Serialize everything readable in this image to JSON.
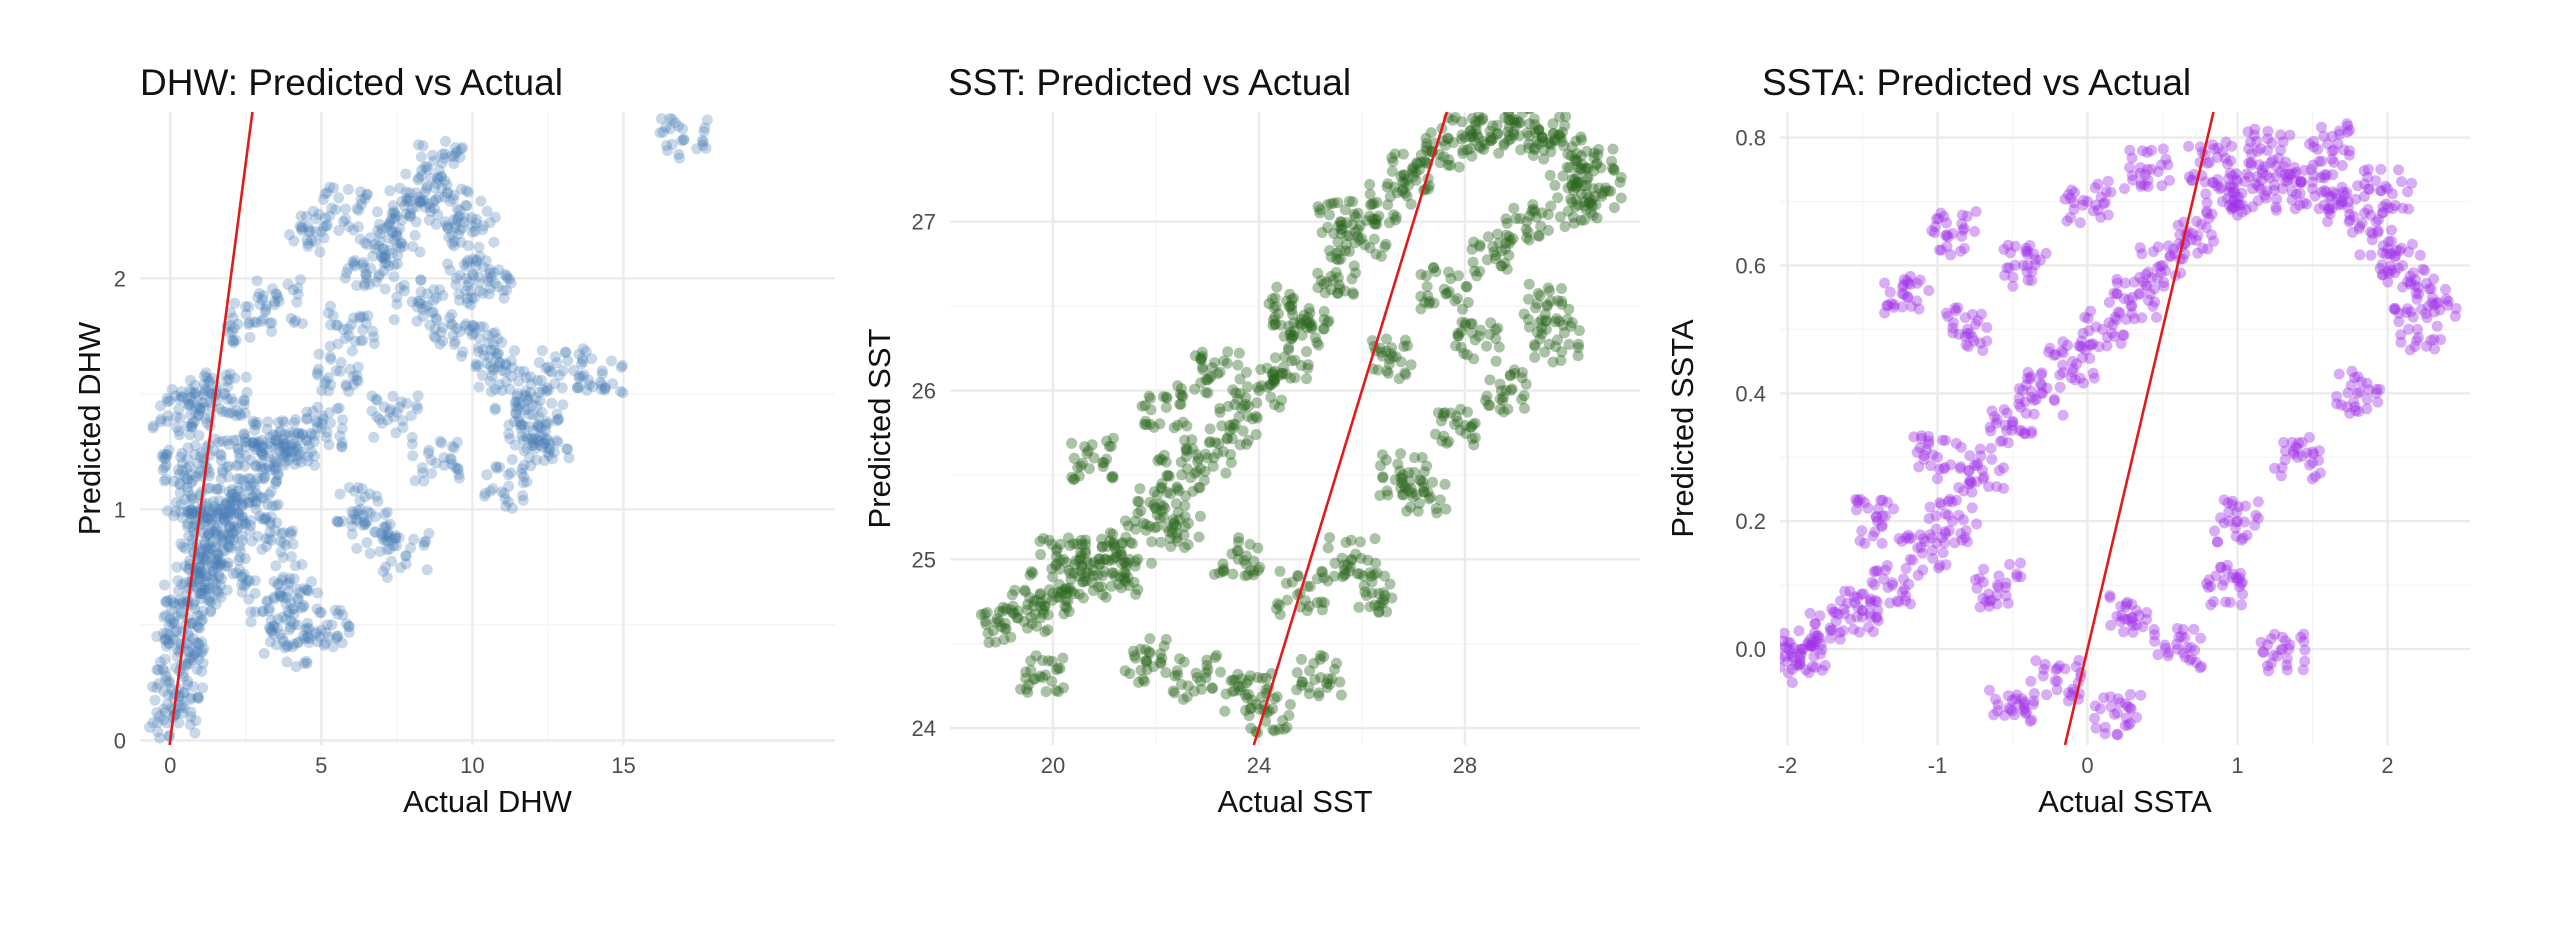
{
  "chart_data": [
    {
      "type": "scatter",
      "title": "DHW: Predicted vs Actual",
      "xlabel": "Actual DHW",
      "ylabel": "Predicted DHW",
      "xlim": [
        -1,
        22
      ],
      "ylim": [
        -0.02,
        2.72
      ],
      "xticks": [
        0,
        5,
        10,
        15
      ],
      "yticks": [
        0,
        1,
        2
      ],
      "grid": true,
      "point_color": "#4a7fb5",
      "point_opacity": 0.3,
      "reference_line": {
        "slope": 1,
        "intercept": 0,
        "color": "#e31a1c"
      },
      "series": [
        {
          "name": "",
          "x": [
            0.1,
            0.3,
            0.5,
            0.8,
            1.0,
            1.2,
            1.5,
            2.0,
            2.5,
            3.0,
            3.5,
            4.0,
            4.5,
            5.0,
            0.2,
            0.6,
            1.8,
            2.2,
            2.8,
            3.2,
            3.8,
            4.2,
            5.5,
            6.0,
            6.5,
            7.0,
            7.5,
            8.0,
            8.5,
            9.0,
            9.5,
            10.0,
            10.5,
            11.0,
            11.5,
            12.0,
            12.5,
            13.0,
            14.3,
            17.0,
            0.4,
            0.7,
            1.1,
            1.6,
            2.4,
            3.3,
            4.1,
            5.2,
            6.3,
            7.4,
            8.2,
            9.3,
            10.2,
            11.2,
            12.2,
            6.8,
            7.8,
            8.8,
            9.8,
            3.6,
            4.6,
            5.8,
            2.6,
            1.4,
            0.9,
            0.15,
            0.35,
            0.55,
            1.3,
            1.7
          ],
          "y": [
            0.1,
            0.3,
            0.5,
            0.6,
            0.7,
            0.8,
            0.9,
            1.0,
            1.1,
            1.2,
            1.3,
            1.25,
            1.3,
            1.35,
            1.4,
            1.45,
            1.5,
            1.3,
            1.1,
            0.6,
            0.4,
            0.5,
            1.6,
            1.8,
            2.0,
            2.1,
            2.2,
            2.3,
            2.4,
            2.5,
            2.3,
            2.2,
            2.0,
            1.6,
            1.5,
            1.3,
            1.3,
            1.6,
            1.6,
            2.6,
            1.2,
            1.0,
            0.9,
            0.8,
            0.95,
            0.9,
            0.7,
            0.5,
            1.0,
            1.4,
            1.9,
            1.8,
            1.7,
            1.1,
            1.4,
            0.9,
            0.8,
            1.2,
            2.0,
            1.9,
            2.2,
            2.3,
            1.8,
            1.5,
            1.2,
            0.2,
            0.4,
            0.6,
            1.0,
            0.7
          ]
        }
      ]
    },
    {
      "type": "scatter",
      "title": "SST: Predicted vs Actual",
      "xlabel": "Actual SST",
      "ylabel": "Predicted SST",
      "xlim": [
        18,
        31.4
      ],
      "ylim": [
        23.9,
        27.65
      ],
      "xticks": [
        20,
        24,
        28
      ],
      "yticks": [
        24,
        25,
        26,
        27
      ],
      "grid": true,
      "point_color": "#2a661d",
      "point_opacity": 0.4,
      "reference_line": {
        "slope": 1,
        "intercept": 0,
        "color": "#e31a1c"
      },
      "series": [
        {
          "name": "",
          "x": [
            19.0,
            19.5,
            20.0,
            20.5,
            21.0,
            21.5,
            22.0,
            22.5,
            23.0,
            23.5,
            24.0,
            24.5,
            25.0,
            25.5,
            26.0,
            26.5,
            27.0,
            27.5,
            28.0,
            28.5,
            29.0,
            29.5,
            30.0,
            30.5,
            20.2,
            21.2,
            22.4,
            23.6,
            24.8,
            25.8,
            26.8,
            27.8,
            28.8,
            29.8,
            22.8,
            23.8,
            24.2,
            25.2,
            26.2,
            27.2,
            28.2,
            29.2,
            30.2,
            21.8,
            22.2,
            24.6,
            26.6,
            28.6,
            30.6,
            19.8,
            20.8,
            23.2,
            25.6,
            27.6,
            29.6
          ],
          "y": [
            24.6,
            24.7,
            24.8,
            24.9,
            25.0,
            25.1,
            25.3,
            25.5,
            25.6,
            25.8,
            26.0,
            26.2,
            26.4,
            26.7,
            26.9,
            27.1,
            27.3,
            27.4,
            27.5,
            27.5,
            27.6,
            27.5,
            27.4,
            27.3,
            25.0,
            24.9,
            25.2,
            25.0,
            24.8,
            25.0,
            25.5,
            25.8,
            26.0,
            26.3,
            24.3,
            24.2,
            24.1,
            24.3,
            24.8,
            25.4,
            26.3,
            27.0,
            27.1,
            24.4,
            25.9,
            26.5,
            26.2,
            26.8,
            27.2,
            24.3,
            25.6,
            26.1,
            27.0,
            26.6,
            26.5
          ]
        }
      ]
    },
    {
      "type": "scatter",
      "title": "SSTA: Predicted vs Actual",
      "xlabel": "Actual SSTA",
      "ylabel": "Predicted SSTA",
      "xlim": [
        -2.05,
        2.55
      ],
      "ylim": [
        -0.15,
        0.84
      ],
      "xticks": [
        -2,
        -1,
        0,
        1,
        2
      ],
      "yticks": [
        0.0,
        0.2,
        0.4,
        0.6,
        0.8
      ],
      "grid": true,
      "point_color": "#a033e8",
      "point_opacity": 0.4,
      "reference_line": {
        "slope": 1,
        "intercept": 0,
        "color": "#e31a1c"
      },
      "series": [
        {
          "name": "",
          "x": [
            -2.0,
            -1.9,
            -1.7,
            -1.5,
            -1.3,
            -1.1,
            -0.9,
            -0.7,
            -0.5,
            -0.3,
            -0.1,
            0.1,
            0.3,
            0.5,
            0.7,
            0.9,
            1.1,
            1.3,
            1.5,
            1.7,
            1.9,
            2.1,
            2.3,
            -1.4,
            -1.0,
            -0.6,
            -0.2,
            0.2,
            0.6,
            1.0,
            1.4,
            1.8,
            2.2,
            -0.8,
            -0.4,
            0.0,
            0.4,
            0.8,
            1.2,
            1.6,
            2.0,
            -1.2,
            -0.9,
            -0.5,
            0.3,
            0.9,
            1.3
          ],
          "y": [
            -0.02,
            0.0,
            0.03,
            0.06,
            0.1,
            0.15,
            0.2,
            0.28,
            0.35,
            0.4,
            0.45,
            0.5,
            0.55,
            0.6,
            0.65,
            0.7,
            0.72,
            0.72,
            0.72,
            0.7,
            0.65,
            0.6,
            0.55,
            0.2,
            0.3,
            0.1,
            -0.05,
            -0.1,
            0.0,
            0.2,
            0.3,
            0.4,
            0.5,
            0.5,
            0.6,
            0.7,
            0.75,
            0.76,
            0.78,
            0.79,
            0.72,
            0.55,
            0.65,
            -0.08,
            0.05,
            0.1,
            0.0
          ]
        }
      ]
    }
  ]
}
